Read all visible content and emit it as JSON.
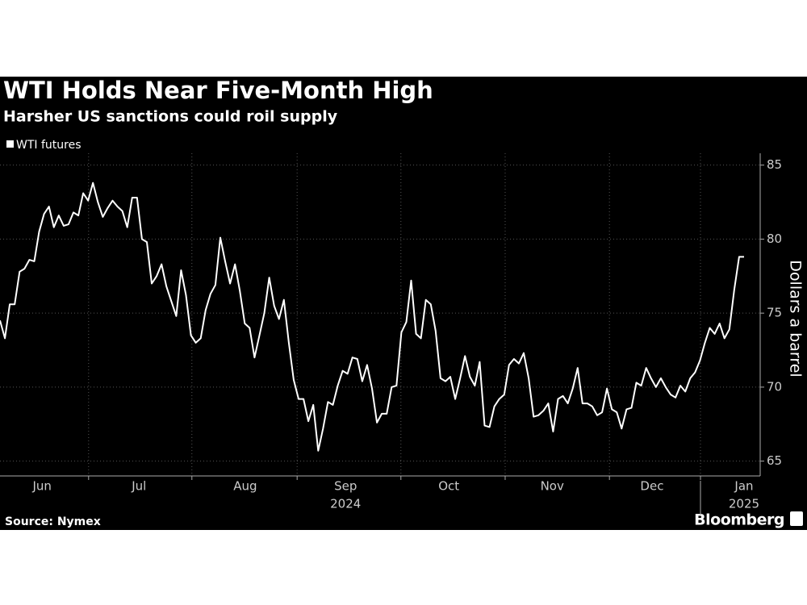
{
  "chart_data": {
    "type": "line",
    "title": "WTI Holds Near Five-Month High",
    "subtitle": "Harsher US sanctions could roil supply",
    "y_label": "Dollars a barrel",
    "source": "Source: Nymex",
    "brand": "Bloomberg",
    "series": [
      {
        "name": "WTI futures",
        "color": "#ffffff",
        "values": [
          74.5,
          73.3,
          75.6,
          75.6,
          77.8,
          78.0,
          78.6,
          78.5,
          80.5,
          81.7,
          82.2,
          80.8,
          81.6,
          80.9,
          81.0,
          81.8,
          81.6,
          83.1,
          82.6,
          83.8,
          82.5,
          81.5,
          82.1,
          82.6,
          82.2,
          81.9,
          80.8,
          82.8,
          82.8,
          80.0,
          79.8,
          77.0,
          77.5,
          78.3,
          76.8,
          75.8,
          74.8,
          77.9,
          76.2,
          73.5,
          73.0,
          73.3,
          75.2,
          76.3,
          76.9,
          80.1,
          78.5,
          77.0,
          78.3,
          76.5,
          74.3,
          74.0,
          72.0,
          73.5,
          75.0,
          77.4,
          75.5,
          74.6,
          75.9,
          73.0,
          70.5,
          69.2,
          69.2,
          67.7,
          68.8,
          65.7,
          67.2,
          69.0,
          68.8,
          70.1,
          71.1,
          70.9,
          72.0,
          71.9,
          70.4,
          71.5,
          69.9,
          67.6,
          68.2,
          68.2,
          70.0,
          70.1,
          73.7,
          74.4,
          77.2,
          73.6,
          73.3,
          75.9,
          75.6,
          73.8,
          70.6,
          70.4,
          70.7,
          69.2,
          70.6,
          72.1,
          70.7,
          70.1,
          71.7,
          67.4,
          67.3,
          68.7,
          69.2,
          69.5,
          71.5,
          71.9,
          71.6,
          72.3,
          70.6,
          68.0,
          68.1,
          68.4,
          68.9,
          67.0,
          69.2,
          69.4,
          68.9,
          69.9,
          71.3,
          68.9,
          68.9,
          68.7,
          68.1,
          68.3,
          69.9,
          68.5,
          68.3,
          67.2,
          68.5,
          68.6,
          70.3,
          70.1,
          71.3,
          70.6,
          70.0,
          70.6,
          70.0,
          69.5,
          69.3,
          70.1,
          69.7,
          70.6,
          71.0,
          71.8,
          73.0,
          74.0,
          73.6,
          74.3,
          73.3,
          73.9,
          76.6,
          78.8,
          78.8
        ]
      }
    ],
    "xlim": [
      0,
      155.3
    ],
    "xticks": [
      {
        "value": 8.6,
        "label": "Jun"
      },
      {
        "value": 28.4,
        "label": "Jul"
      },
      {
        "value": 50.1,
        "label": "Aug"
      },
      {
        "value": 70.6,
        "label": "Sep"
      },
      {
        "value": 91.7,
        "label": "Oct"
      },
      {
        "value": 112.8,
        "label": "Nov"
      },
      {
        "value": 133.2,
        "label": "Dec"
      },
      {
        "value": 152,
        "label": "Jan"
      }
    ],
    "xgrid": [
      18.1,
      39.2,
      60.7,
      81.9,
      103.2,
      124.5,
      143.1
    ],
    "year_labels": [
      {
        "value": 70.6,
        "label": "2024"
      },
      {
        "value": 152,
        "label": "2025"
      }
    ],
    "ylim": [
      64,
      85.8
    ],
    "yticks": [
      65,
      70,
      75,
      80,
      85
    ],
    "grid": true
  }
}
